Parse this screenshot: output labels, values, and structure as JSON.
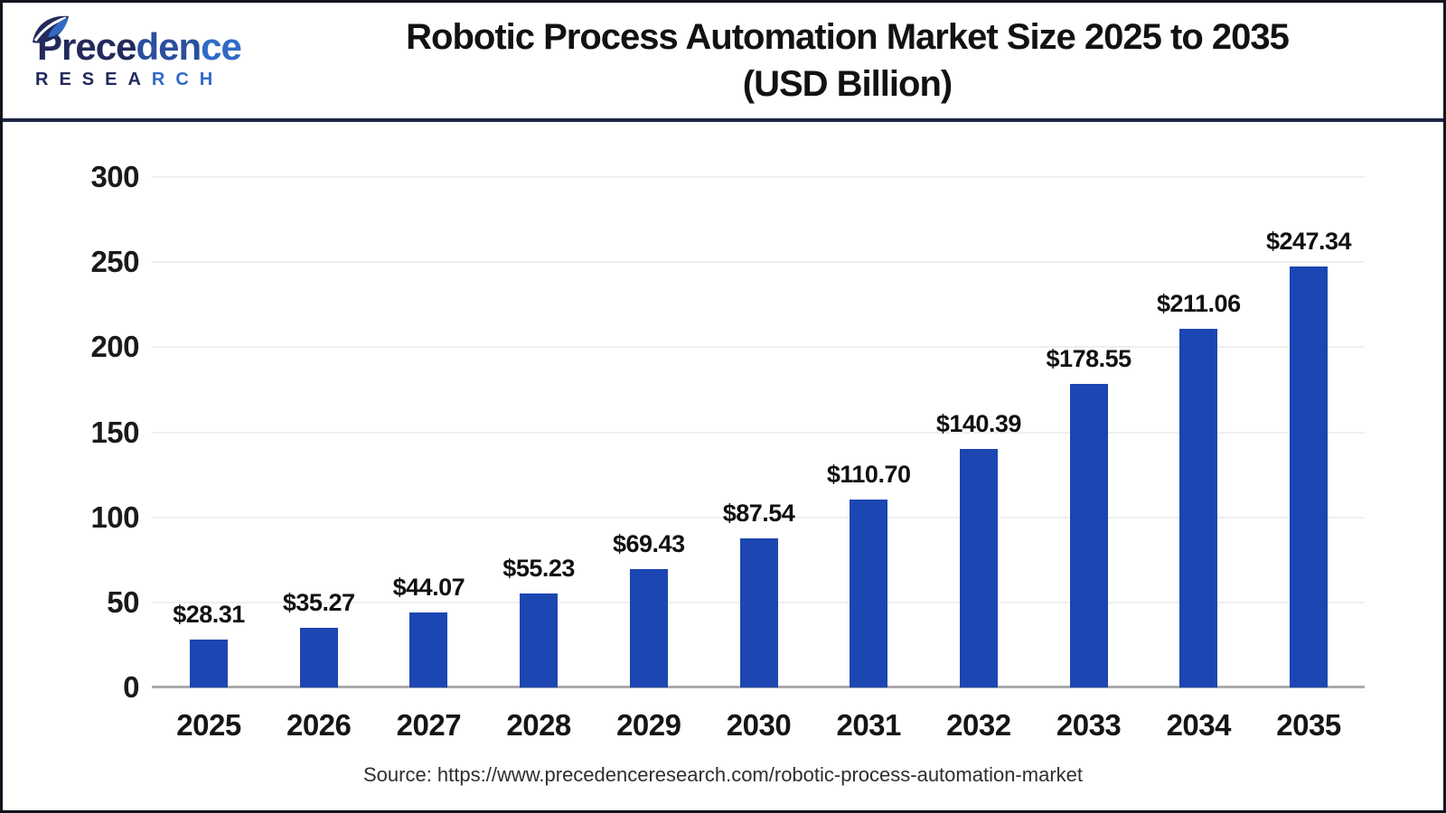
{
  "header": {
    "logo": {
      "name_part1": "Prece",
      "name_part2": "den",
      "name_part3": "ce",
      "research_part1": "RESEA",
      "research_part2": "RCH"
    },
    "title_line1": "Robotic Process Automation Market Size 2025 to 2035",
    "title_line2": "(USD Billion)"
  },
  "chart_data": {
    "type": "bar",
    "title": "Robotic Process Automation Market Size 2025 to 2035 (USD Billion)",
    "categories": [
      "2025",
      "2026",
      "2027",
      "2028",
      "2029",
      "2030",
      "2031",
      "2032",
      "2033",
      "2034",
      "2035"
    ],
    "values": [
      28.31,
      35.27,
      44.07,
      55.23,
      69.43,
      87.54,
      110.7,
      140.39,
      178.55,
      211.06,
      247.34
    ],
    "value_labels": [
      "$28.31",
      "$35.27",
      "$44.07",
      "$55.23",
      "$69.43",
      "$87.54",
      "$110.70",
      "$140.39",
      "$178.55",
      "$211.06",
      "$247.34"
    ],
    "xlabel": "",
    "ylabel": "",
    "ylim": [
      0,
      300
    ],
    "yticks": [
      0,
      50,
      100,
      150,
      200,
      250,
      300
    ],
    "grid": true,
    "legend": "none",
    "bar_color": "#1C46B2",
    "value_prefix": "$"
  },
  "colors": {
    "bar": "#1C46B2",
    "brand_navy": "#232A5C",
    "brand_blue": "#2F6BC6",
    "header_rule": "#202449",
    "gridline": "#EFEFEF",
    "axis_line": "#ABABAB",
    "text": "#111111"
  },
  "footer": {
    "source": "Source: https://www.precedenceresearch.com/robotic-process-automation-market"
  }
}
